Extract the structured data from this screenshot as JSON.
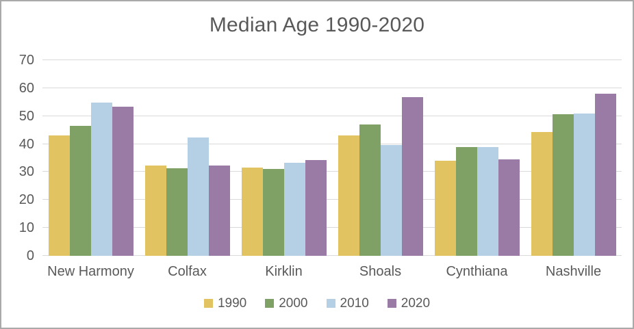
{
  "chart_data": {
    "type": "bar",
    "title": "Median Age 1990-2020",
    "categories": [
      "New Harmony",
      "Colfax",
      "Kirklin",
      "Shoals",
      "Cynthiana",
      "Nashville"
    ],
    "series": [
      {
        "name": "1990",
        "color": "#e1c361",
        "values": [
          43.2,
          32.2,
          31.6,
          43.2,
          34.0,
          44.3
        ]
      },
      {
        "name": "2000",
        "color": "#7fa166",
        "values": [
          46.4,
          31.4,
          31.0,
          47.0,
          38.9,
          50.6
        ]
      },
      {
        "name": "2010",
        "color": "#b5cfe5",
        "values": [
          54.8,
          42.4,
          33.4,
          39.6,
          38.9,
          50.9
        ]
      },
      {
        "name": "2020",
        "color": "#9a7ba6",
        "values": [
          53.3,
          32.4,
          34.3,
          56.7,
          34.4,
          58.1
        ]
      }
    ],
    "xlabel": "",
    "ylabel": "",
    "ylim": [
      0,
      70
    ],
    "yticks": [
      0,
      10,
      20,
      30,
      40,
      50,
      60,
      70
    ],
    "grid": true,
    "legend_position": "bottom",
    "colors": {
      "text": "#595959",
      "gridline": "#d9d9d9",
      "background": "#ffffff",
      "border": "#a9a9a9"
    }
  }
}
